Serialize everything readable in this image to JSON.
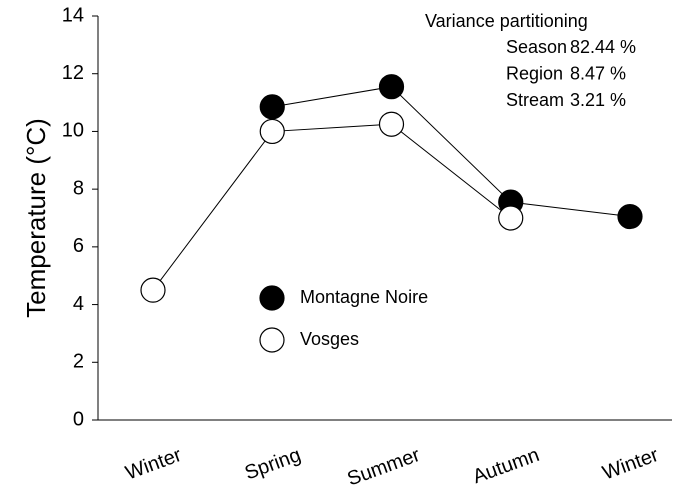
{
  "chart_data": {
    "type": "line",
    "y_label": "Temperature (°C)",
    "categories": [
      "Winter",
      "Spring",
      "Summer",
      "Autumn",
      "Winter"
    ],
    "series": [
      {
        "name": "Montagne Noire",
        "color": "#000000",
        "values": [
          null,
          10.85,
          11.55,
          7.55,
          7.05
        ]
      },
      {
        "name": "Vosges",
        "color": "#ffffff",
        "values": [
          4.5,
          10.0,
          10.25,
          7.0,
          null
        ]
      }
    ],
    "ylim": [
      0,
      14
    ],
    "yticks": [
      0,
      2,
      4,
      6,
      8,
      10,
      12,
      14
    ],
    "annotation": {
      "title": "Variance partitioning",
      "rows": [
        [
          "Season",
          "82.44 %"
        ],
        [
          "Region",
          "8.47 %"
        ],
        [
          "Stream",
          "3.21 %"
        ]
      ]
    }
  }
}
